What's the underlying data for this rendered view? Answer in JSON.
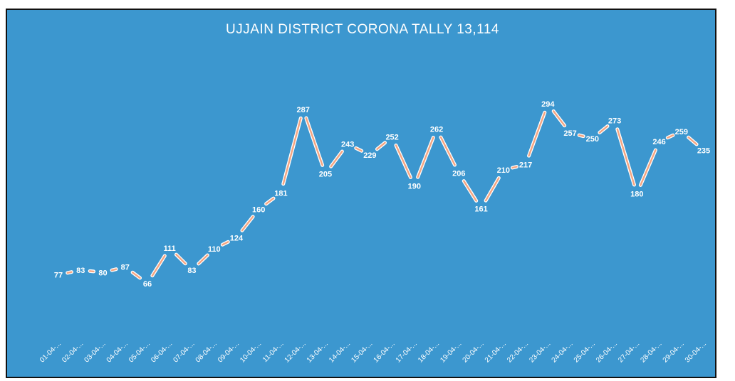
{
  "chart_data": {
    "type": "line",
    "title": "UJJAIN DISTRICT CORONA TALLY 13,114",
    "xlabel": "",
    "ylabel": "",
    "ylim": [
      0,
      310
    ],
    "grid": false,
    "legend": "none",
    "categories": [
      "01-04-...",
      "02-04-...",
      "03-04-...",
      "04-04-...",
      "05-04-...",
      "06-04-...",
      "07-04-...",
      "08-04-...",
      "09-04-...",
      "10-04-...",
      "11-04-...",
      "12-04-...",
      "13-04-...",
      "14-04-...",
      "15-04-...",
      "16-04-...",
      "17-04-...",
      "18-04-...",
      "19-04-...",
      "20-04-...",
      "21-04-...",
      "22-04-...",
      "23-04-...",
      "24-04-...",
      "25-04-...",
      "26-04-...",
      "27-04-...",
      "28-04-...",
      "29-04-...",
      "30-04-..."
    ],
    "series": [
      {
        "values": [
          77,
          83,
          80,
          87,
          66,
          111,
          83,
          110,
          124,
          160,
          181,
          287,
          205,
          243,
          229,
          252,
          190,
          262,
          206,
          161,
          210,
          217,
          294,
          257,
          250,
          273,
          180,
          246,
          259,
          235
        ]
      }
    ],
    "colors": {
      "background": "#3c97cf",
      "line": "#f4a582",
      "line_edge": "#ffffff",
      "text": "#ffffff"
    }
  }
}
